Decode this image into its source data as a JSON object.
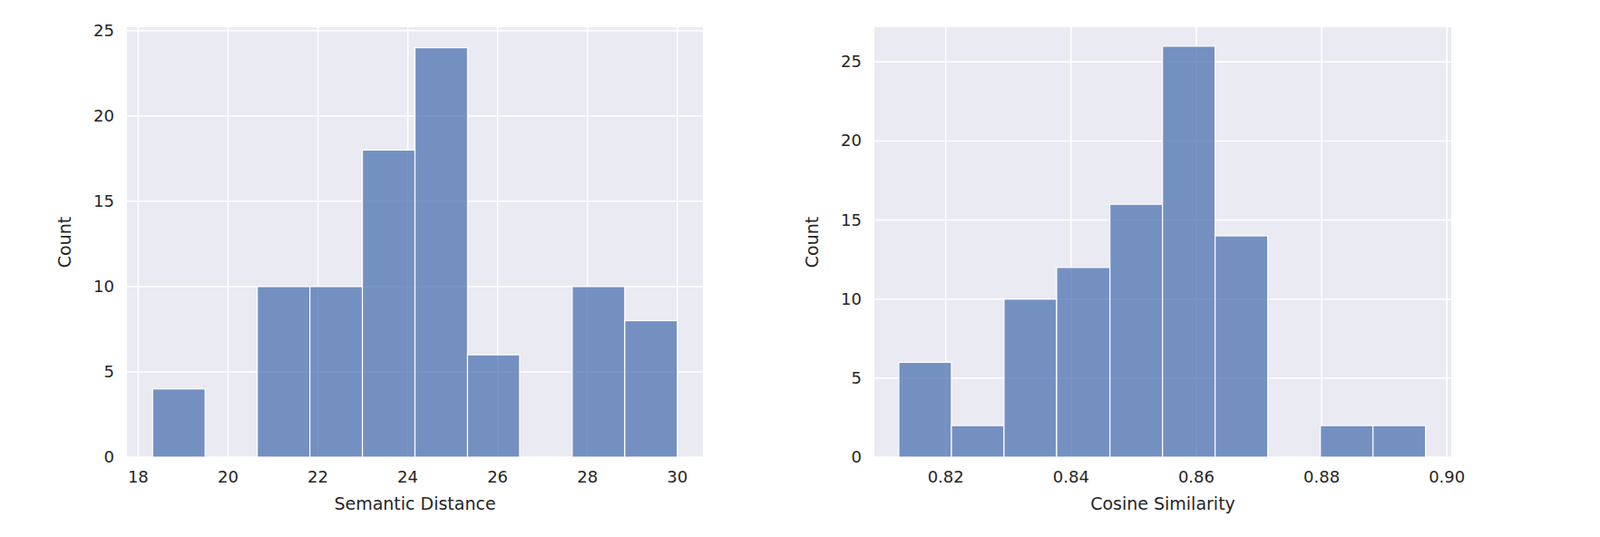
{
  "chart_data": [
    {
      "type": "histogram",
      "xlabel": "Semantic Distance",
      "ylabel": "Count",
      "bins": [
        18.32,
        19.49,
        20.65,
        21.82,
        22.99,
        24.16,
        25.33,
        26.49,
        27.66,
        28.83,
        30.0
      ],
      "counts": [
        4,
        0,
        10,
        10,
        18,
        24,
        6,
        0,
        10,
        8
      ],
      "color": "#4c72b0",
      "grid": true,
      "xlim": [
        17.75,
        30.57
      ],
      "ylim": [
        0,
        25.2
      ],
      "xticks": [
        18,
        20,
        22,
        24,
        26,
        28,
        30
      ],
      "yticks": [
        0,
        5,
        10,
        15,
        20,
        25
      ]
    },
    {
      "type": "histogram",
      "xlabel": "Cosine Similarity",
      "ylabel": "Count",
      "bins": [
        0.8125,
        0.8209,
        0.8293,
        0.8377,
        0.8462,
        0.8546,
        0.863,
        0.8714,
        0.8798,
        0.8882,
        0.8966
      ],
      "counts": [
        6,
        2,
        10,
        12,
        16,
        26,
        14,
        0,
        2,
        2
      ],
      "color": "#4c72b0",
      "grid": true,
      "xlim": [
        0.8086,
        0.9007
      ],
      "ylim": [
        0,
        27.2
      ],
      "xticks": [
        0.82,
        0.84,
        0.86,
        0.88,
        {
          "value": 0.9,
          "label": "0.90"
        }
      ],
      "yticks": [
        0,
        5,
        10,
        15,
        20,
        25
      ]
    }
  ]
}
